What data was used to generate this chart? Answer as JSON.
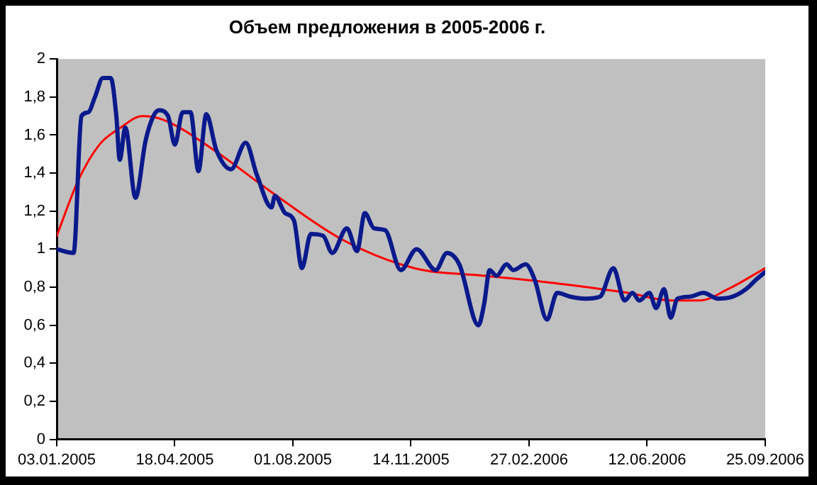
{
  "chart_data": {
    "type": "line",
    "title": "Объем предложения в 2005-2006 г.",
    "xlim": [
      "2005-01-03",
      "2006-09-25"
    ],
    "xticks": [
      {
        "value": "2005-01-03",
        "label": "03.01.2005"
      },
      {
        "value": "2005-04-18",
        "label": "18.04.2005"
      },
      {
        "value": "2005-08-01",
        "label": "01.08.2005"
      },
      {
        "value": "2005-11-14",
        "label": "14.11.2005"
      },
      {
        "value": "2006-02-27",
        "label": "27.02.2006"
      },
      {
        "value": "2006-06-12",
        "label": "12.06.2006"
      },
      {
        "value": "2006-09-25",
        "label": "25.09.2006"
      }
    ],
    "ylim": [
      0,
      2
    ],
    "yticks": [
      0,
      {
        "value": 0.2,
        "label": "0,2"
      },
      {
        "value": 0.4,
        "label": "0,4"
      },
      {
        "value": 0.6,
        "label": "0,6"
      },
      {
        "value": 0.8,
        "label": "0,8"
      },
      1,
      {
        "value": 1.2,
        "label": "1,2"
      },
      {
        "value": 1.4,
        "label": "1,4"
      },
      {
        "value": 1.6,
        "label": "1,6"
      },
      {
        "value": 1.8,
        "label": "1,8"
      },
      2
    ],
    "grid": false,
    "legend": false,
    "marker": "none",
    "line_style": "solid",
    "series": [
      {
        "type": "line",
        "color": "#0a1a8c",
        "x": [
          "2005-01-03",
          "2005-01-18",
          "2005-01-25",
          "2005-01-31",
          "2005-02-06",
          "2005-02-13",
          "2005-02-20",
          "2005-02-25",
          "2005-02-28",
          "2005-03-05",
          "2005-03-14",
          "2005-03-23",
          "2005-03-30",
          "2005-04-04",
          "2005-04-12",
          "2005-04-18",
          "2005-04-25",
          "2005-05-02",
          "2005-05-09",
          "2005-05-16",
          "2005-05-25",
          "2005-06-07",
          "2005-06-20",
          "2005-06-30",
          "2005-07-13",
          "2005-07-16",
          "2005-07-25",
          "2005-08-02",
          "2005-08-09",
          "2005-08-17",
          "2005-08-28",
          "2005-09-05",
          "2005-09-18",
          "2005-09-27",
          "2005-10-04",
          "2005-10-12",
          "2005-10-22",
          "2005-11-05",
          "2005-11-19",
          "2005-12-06",
          "2005-12-16",
          "2005-12-27",
          "2006-01-13",
          "2006-01-18",
          "2006-01-23",
          "2006-01-29",
          "2006-02-07",
          "2006-02-13",
          "2006-02-24",
          "2006-03-04",
          "2006-03-15",
          "2006-03-24",
          "2006-04-05",
          "2006-04-18",
          "2006-05-01",
          "2006-05-13",
          "2006-05-23",
          "2006-05-30",
          "2006-06-05",
          "2006-06-14",
          "2006-06-20",
          "2006-06-27",
          "2006-07-03",
          "2006-07-09",
          "2006-07-20",
          "2006-08-01",
          "2006-08-14",
          "2006-08-27",
          "2006-09-08",
          "2006-09-17",
          "2006-09-25"
        ],
        "values": [
          1.0,
          0.98,
          1.7,
          1.72,
          1.8,
          1.9,
          1.9,
          1.7,
          1.47,
          1.64,
          1.27,
          1.57,
          1.7,
          1.73,
          1.7,
          1.55,
          1.72,
          1.72,
          1.41,
          1.71,
          1.52,
          1.42,
          1.56,
          1.39,
          1.22,
          1.28,
          1.19,
          1.15,
          0.9,
          1.08,
          1.07,
          0.98,
          1.11,
          0.99,
          1.19,
          1.11,
          1.1,
          0.89,
          1.0,
          0.89,
          0.98,
          0.92,
          0.6,
          0.71,
          0.89,
          0.86,
          0.92,
          0.89,
          0.92,
          0.84,
          0.63,
          0.77,
          0.75,
          0.74,
          0.75,
          0.9,
          0.73,
          0.77,
          0.73,
          0.77,
          0.69,
          0.79,
          0.64,
          0.74,
          0.75,
          0.77,
          0.74,
          0.75,
          0.79,
          0.84,
          0.88
        ]
      },
      {
        "type": "line",
        "color": "#ff0000",
        "x": [
          "2005-01-03",
          "2005-01-22",
          "2005-02-10",
          "2005-03-01",
          "2005-03-20",
          "2005-04-08",
          "2005-05-23",
          "2005-07-13",
          "2005-09-14",
          "2005-11-17",
          "2006-01-19",
          "2006-03-24",
          "2006-05-26",
          "2006-07-03",
          "2006-07-29",
          "2006-08-23",
          "2006-09-25"
        ],
        "values": [
          1.07,
          1.36,
          1.55,
          1.64,
          1.7,
          1.68,
          1.52,
          1.3,
          1.05,
          0.9,
          0.86,
          0.82,
          0.77,
          0.73,
          0.73,
          0.79,
          0.9
        ]
      }
    ]
  }
}
